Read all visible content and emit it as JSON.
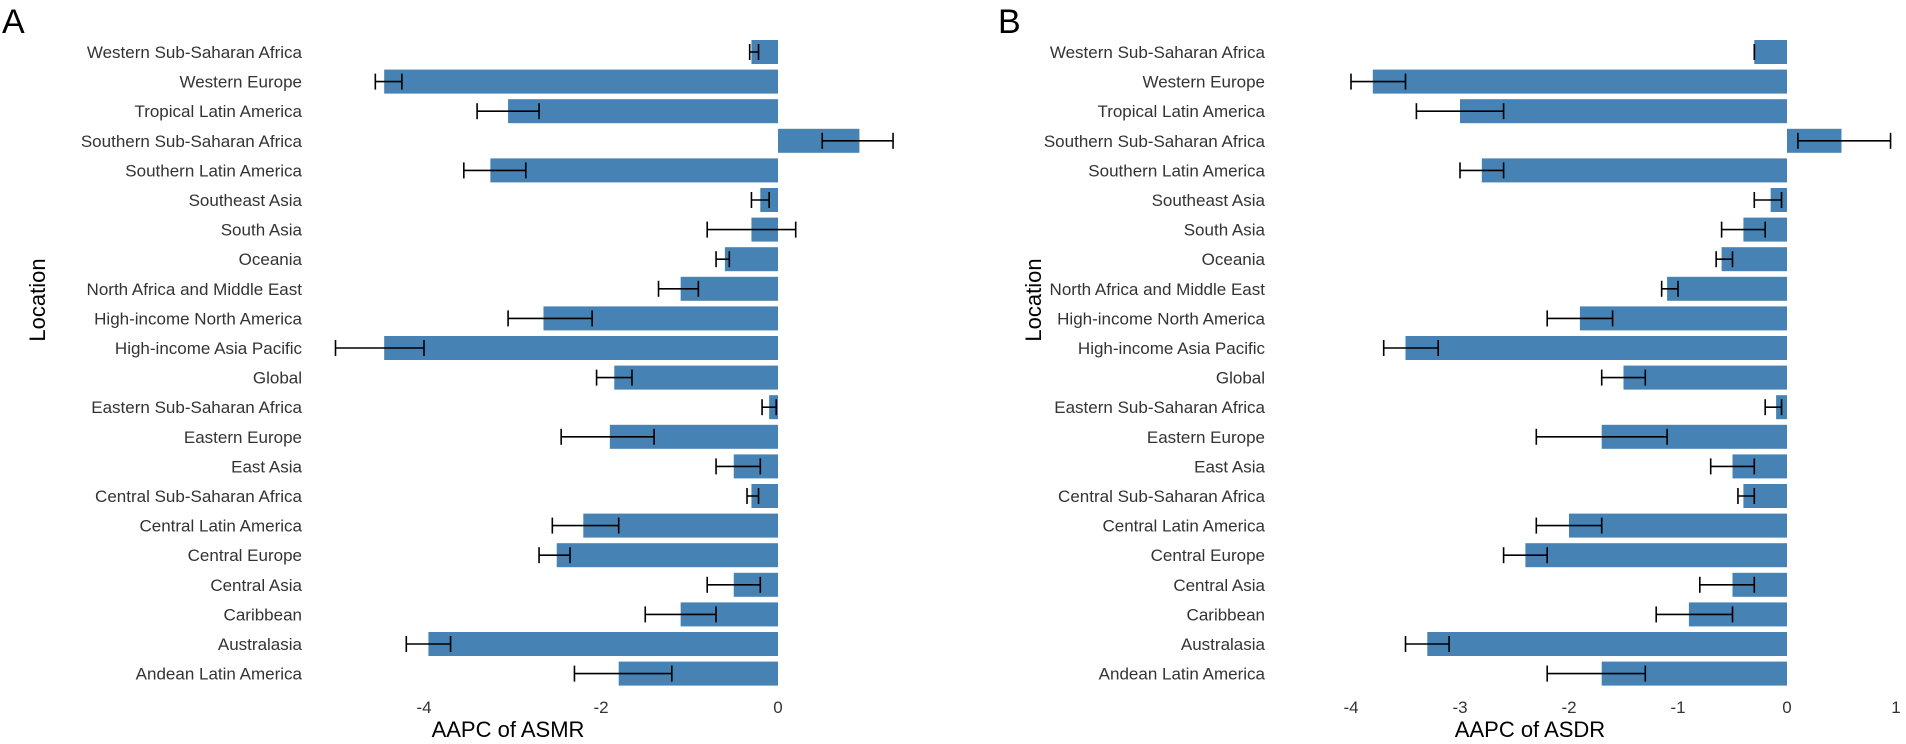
{
  "bar_color": "#4682b4",
  "chart_data": [
    {
      "type": "bar",
      "orientation": "horizontal",
      "panel_label": "A",
      "title": "",
      "xlabel": "AAPC of ASMR",
      "ylabel": "Location",
      "xlim": [
        -4.6,
        0.85
      ],
      "ticks": [
        -4,
        -2,
        0
      ],
      "categories": [
        "Western Sub-Saharan Africa",
        "Western Europe",
        "Tropical Latin America",
        "Southern Sub-Saharan Africa",
        "Southern Latin America",
        "Southeast Asia",
        "South Asia",
        "Oceania",
        "North Africa and Middle East",
        "High-income North America",
        "High-income Asia Pacific",
        "Global",
        "Eastern Sub-Saharan Africa",
        "Eastern Europe",
        "East Asia",
        "Central Sub-Saharan Africa",
        "Central Latin America",
        "Central Europe",
        "Central Asia",
        "Caribbean",
        "Australasia",
        "Andean Latin America"
      ],
      "values": [
        -0.3,
        -4.45,
        -3.05,
        0.92,
        -3.25,
        -0.2,
        -0.3,
        -0.6,
        -1.1,
        -2.65,
        -4.45,
        -1.85,
        -0.1,
        -1.9,
        -0.5,
        -0.3,
        -2.2,
        -2.5,
        -0.5,
        -1.1,
        -3.95,
        -1.8
      ],
      "err_low": [
        -0.32,
        -4.55,
        -3.4,
        0.5,
        -3.55,
        -0.3,
        -0.8,
        -0.7,
        -1.35,
        -3.05,
        -5.0,
        -2.05,
        -0.18,
        -2.45,
        -0.7,
        -0.35,
        -2.55,
        -2.7,
        -0.8,
        -1.5,
        -4.2,
        -2.3
      ],
      "err_high": [
        -0.22,
        -4.25,
        -2.7,
        1.3,
        -2.85,
        -0.1,
        0.2,
        -0.55,
        -0.9,
        -2.1,
        -4.0,
        -1.65,
        -0.02,
        -1.4,
        -0.2,
        -0.22,
        -1.8,
        -2.35,
        -0.2,
        -0.7,
        -3.7,
        -1.2
      ]
    },
    {
      "type": "bar",
      "orientation": "horizontal",
      "panel_label": "B",
      "title": "",
      "xlabel": "AAPC of ASDR",
      "ylabel": "Location",
      "xlim": [
        -4.1,
        1.0
      ],
      "ticks": [
        -4,
        -3,
        -2,
        -1,
        0,
        1
      ],
      "categories": [
        "Western Sub-Saharan Africa",
        "Western Europe",
        "Tropical Latin America",
        "Southern Sub-Saharan Africa",
        "Southern Latin America",
        "Southeast Asia",
        "South Asia",
        "Oceania",
        "North Africa and Middle East",
        "High-income North America",
        "High-income Asia Pacific",
        "Global",
        "Eastern Sub-Saharan Africa",
        "Eastern Europe",
        "East Asia",
        "Central Sub-Saharan Africa",
        "Central Latin America",
        "Central Europe",
        "Central Asia",
        "Caribbean",
        "Australasia",
        "Andean Latin America"
      ],
      "values": [
        -0.3,
        -3.8,
        -3.0,
        0.5,
        -2.8,
        -0.15,
        -0.4,
        -0.6,
        -1.1,
        -1.9,
        -3.5,
        -1.5,
        -0.1,
        -1.7,
        -0.5,
        -0.4,
        -2.0,
        -2.4,
        -0.5,
        -0.9,
        -3.3,
        -1.7
      ],
      "err_low": [
        -0.3,
        -4.0,
        -3.4,
        0.1,
        -3.0,
        -0.3,
        -0.6,
        -0.65,
        -1.15,
        -2.2,
        -3.7,
        -1.7,
        -0.2,
        -2.3,
        -0.7,
        -0.45,
        -2.3,
        -2.6,
        -0.8,
        -1.2,
        -3.5,
        -2.2
      ],
      "err_high": [
        -0.3,
        -3.5,
        -2.6,
        0.95,
        -2.6,
        -0.05,
        -0.2,
        -0.5,
        -1.0,
        -1.6,
        -3.2,
        -1.3,
        -0.05,
        -1.1,
        -0.3,
        -0.3,
        -1.7,
        -2.2,
        -0.3,
        -0.5,
        -3.1,
        -1.3
      ]
    }
  ]
}
